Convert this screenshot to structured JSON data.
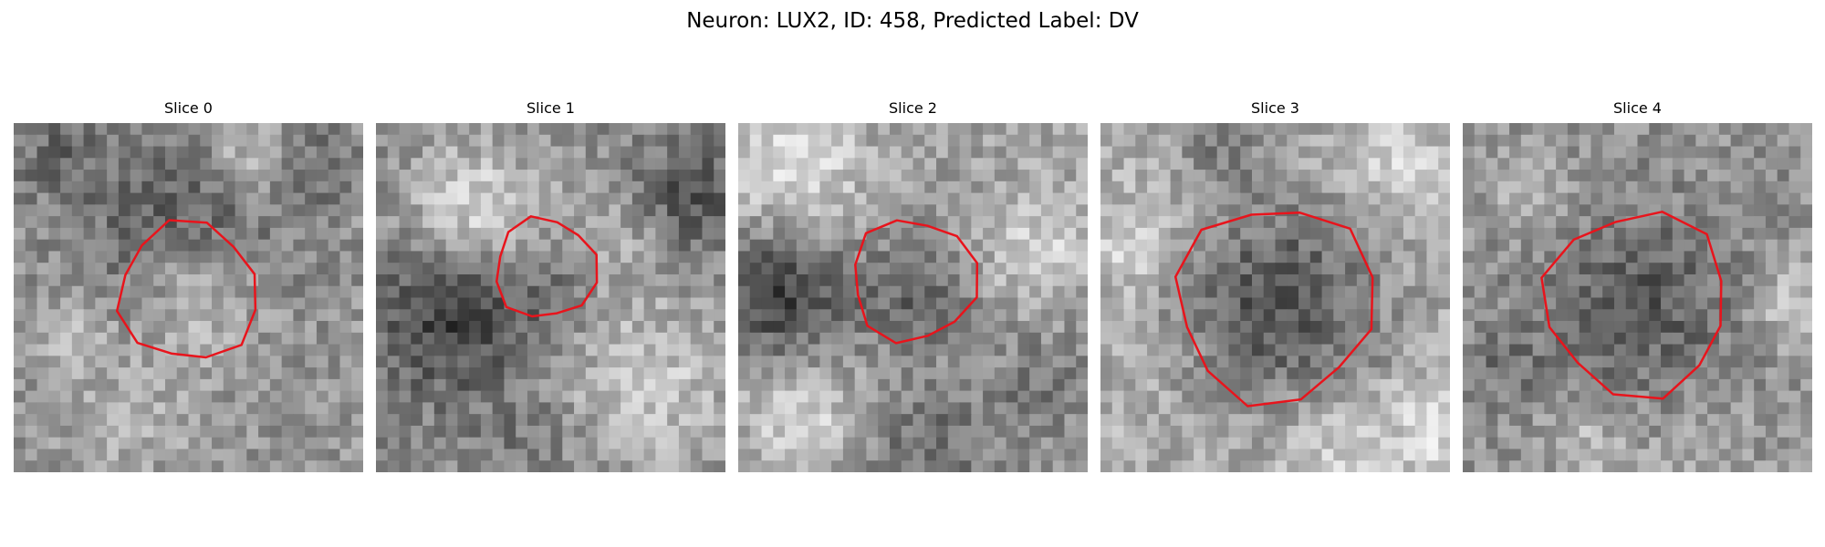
{
  "figure": {
    "title": "Neuron: LUX2, ID: 458, Predicted Label: DV"
  },
  "panels": [
    {
      "title": "Slice 0",
      "outline_color": "#e8141c",
      "icon": "gray-image-with-red-contour"
    },
    {
      "title": "Slice 1",
      "outline_color": "#e8141c",
      "icon": "gray-image-with-red-contour"
    },
    {
      "title": "Slice 2",
      "outline_color": "#e8141c",
      "icon": "gray-image-with-red-contour"
    },
    {
      "title": "Slice 3",
      "outline_color": "#e8141c",
      "icon": "gray-image-with-red-contour"
    },
    {
      "title": "Slice 4",
      "outline_color": "#e8141c",
      "icon": "gray-image-with-red-contour"
    }
  ]
}
